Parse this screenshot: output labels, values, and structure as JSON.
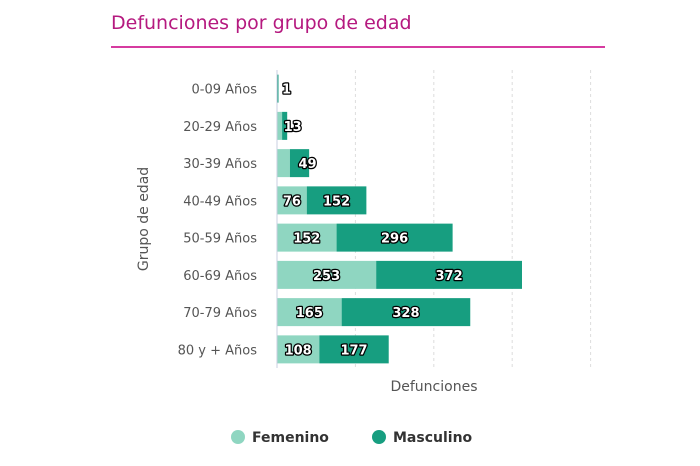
{
  "colors": {
    "title": "#b5197f",
    "rule": "#d63ba0",
    "femenino": "#8fd6c1",
    "masculino": "#179e80"
  },
  "chart_data": {
    "type": "bar",
    "orientation": "horizontal",
    "stacked": true,
    "title": "Defunciones por grupo de edad",
    "xlabel": "Defunciones",
    "ylabel": "Grupo de edad",
    "categories": [
      "0-09 Años",
      "20-29 Años",
      "30-39 Años",
      "40-49 Años",
      "50-59 Años",
      "60-69 Años",
      "70-79 Años",
      "80 y + Años"
    ],
    "series": [
      {
        "name": "Femenino",
        "values": [
          0,
          13,
          33,
          76,
          152,
          253,
          165,
          108
        ],
        "labels_shown": [
          false,
          false,
          false,
          true,
          true,
          true,
          true,
          true
        ]
      },
      {
        "name": "Masculino",
        "values": [
          1,
          13,
          49,
          152,
          296,
          372,
          328,
          177
        ],
        "labels_shown": [
          true,
          true,
          true,
          true,
          true,
          true,
          true,
          true
        ]
      }
    ],
    "xlim": [
      0,
      800
    ],
    "grid": true,
    "legend": "bottom-center"
  }
}
